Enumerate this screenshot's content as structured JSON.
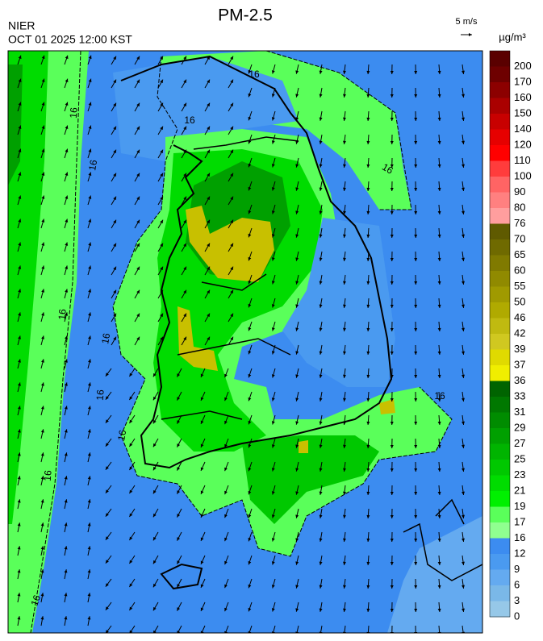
{
  "header": {
    "title": "PM-2.5",
    "agency": "NIER",
    "datetime": "OCT 01 2025 12:00 KST",
    "wind_scale": "5 m/s",
    "unit": "µg/m³"
  },
  "colorbar": {
    "labels": [
      "200",
      "170",
      "160",
      "150",
      "140",
      "120",
      "110",
      "100",
      "90",
      "80",
      "76",
      "70",
      "65",
      "60",
      "55",
      "50",
      "46",
      "42",
      "39",
      "37",
      "36",
      "33",
      "31",
      "29",
      "27",
      "25",
      "23",
      "21",
      "19",
      "17",
      "16",
      "12",
      "9",
      "6",
      "3",
      "0"
    ],
    "colors": [
      "#5a0000",
      "#6e0000",
      "#8c0000",
      "#aa0000",
      "#c80000",
      "#e60000",
      "#ff0000",
      "#ff3c3c",
      "#ff6464",
      "#ff8080",
      "#ff9e9e",
      "#5f5a00",
      "#6f6a00",
      "#807a00",
      "#908a00",
      "#a09a00",
      "#b0aa00",
      "#c0ba10",
      "#d0c820",
      "#e0da00",
      "#f0ee00",
      "#006400",
      "#007800",
      "#008c00",
      "#00a000",
      "#00b400",
      "#00c800",
      "#00dc00",
      "#00f000",
      "#5aff5a",
      "#90ff90",
      "#3c8cf0",
      "#4a9af0",
      "#64aaf0",
      "#7ab8e8",
      "#96c8e8"
    ]
  },
  "contour_labels": [
    "16",
    "16",
    "16",
    "16",
    "16",
    "16",
    "16",
    "16",
    "16",
    "16",
    "16",
    "16"
  ]
}
